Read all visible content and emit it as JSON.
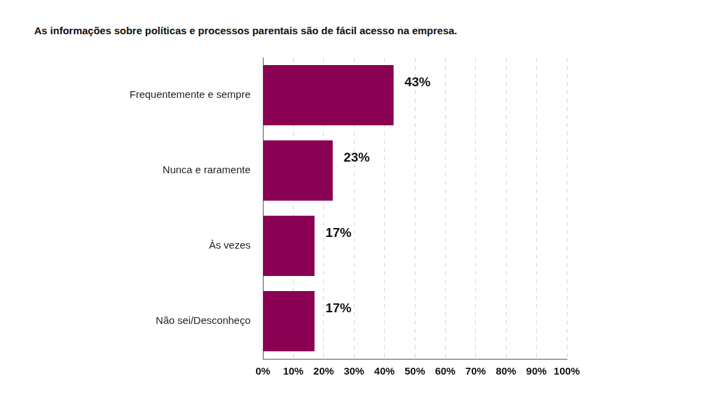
{
  "chart_data": {
    "type": "bar",
    "orientation": "horizontal",
    "title": "As informações sobre políticas e processos parentais são de fácil acesso na empresa.",
    "categories": [
      "Frequentemente e sempre",
      "Nunca e raramente",
      "Às vezes",
      "Não sei/Desconheço"
    ],
    "values": [
      43,
      23,
      17,
      17
    ],
    "value_labels": [
      "43%",
      "23%",
      "17%",
      "17%"
    ],
    "data_labels": true,
    "color": "#8a0052",
    "xlim": [
      0,
      100
    ],
    "xticks": [
      {
        "value": 0,
        "label": "0%"
      },
      {
        "value": 10,
        "label": "10%"
      },
      {
        "value": 20,
        "label": "20%"
      },
      {
        "value": 30,
        "label": "30%"
      },
      {
        "value": 40,
        "label": "40%"
      },
      {
        "value": 50,
        "label": "50%"
      },
      {
        "value": 60,
        "label": "60%"
      },
      {
        "value": 70,
        "label": "70%"
      },
      {
        "value": 80,
        "label": "80%"
      },
      {
        "value": 90,
        "label": "90%"
      },
      {
        "value": 100,
        "label": "100%"
      }
    ],
    "grid": true
  }
}
